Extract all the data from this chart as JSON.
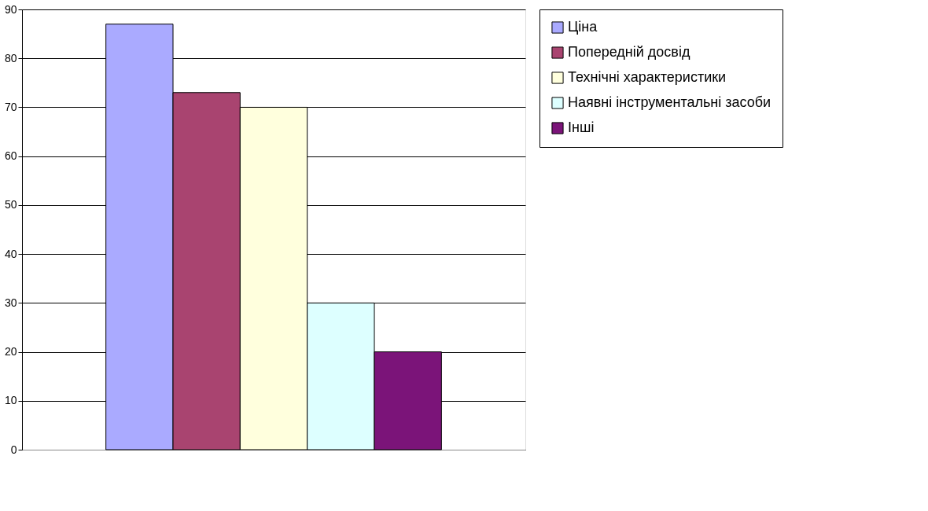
{
  "chart_data": {
    "type": "bar",
    "categories": [
      null
    ],
    "series": [
      {
        "name": "Ціна",
        "color": "#aaaaff",
        "values": [
          87
        ]
      },
      {
        "name": "Попередній досвід",
        "color": "#a94470",
        "values": [
          73
        ]
      },
      {
        "name": "Технічні характеристики",
        "color": "#ffffdd",
        "values": [
          70
        ]
      },
      {
        "name": "Наявні інструментальні засоби",
        "color": "#ddffff",
        "values": [
          30
        ]
      },
      {
        "name": "Інші",
        "color": "#7b1479",
        "values": [
          20
        ]
      }
    ],
    "ylim": [
      0,
      90
    ],
    "yticks": [
      0,
      10,
      20,
      30,
      40,
      50,
      60,
      70,
      80,
      90
    ],
    "grid": "y",
    "legend": "right"
  }
}
